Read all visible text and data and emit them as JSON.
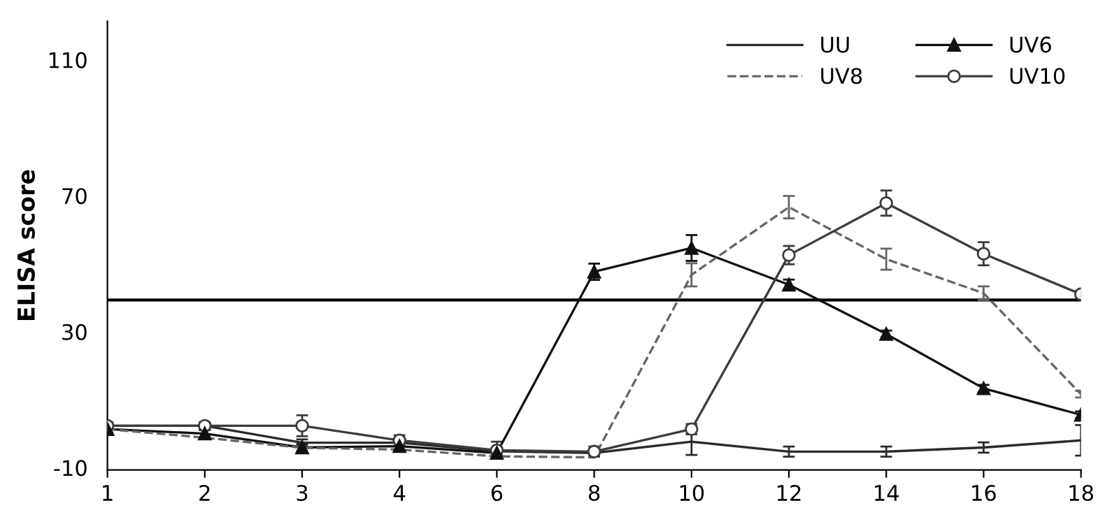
{
  "chart_data": {
    "type": "line",
    "ylabel": "ELISA score",
    "categories": [
      "1",
      "2",
      "3",
      "4",
      "6",
      "8",
      "10",
      "12",
      "14",
      "16",
      "18"
    ],
    "ylim": [
      -10,
      122
    ],
    "yticks": [
      -10,
      30,
      70,
      110
    ],
    "grid": false,
    "legend": "top right",
    "ref_lines": [
      {
        "axis": "y",
        "value": 40,
        "color": "#000000",
        "line_style": "solid"
      }
    ],
    "series": [
      {
        "name": "UU",
        "color": "#2b2b2b",
        "marker": "none",
        "line_style": "solid",
        "values": [
          3,
          3,
          -2,
          -2,
          -4.5,
          -5,
          -1.7,
          -4.6,
          -4.6,
          -3.4,
          -1.3
        ],
        "errors": [
          1,
          1,
          1,
          1,
          1,
          1,
          3.9,
          1.5,
          1.5,
          1.5,
          4.5
        ]
      },
      {
        "name": "UV6",
        "color": "#111111",
        "marker": "triangle",
        "line_style": "solid",
        "values": [
          2,
          0.7,
          -3.4,
          -3,
          -5,
          48.3,
          55.3,
          44.5,
          30,
          14,
          6.2
        ],
        "errors": [
          1,
          1,
          1,
          1,
          1,
          2.4,
          3.8,
          1.5,
          1,
          1,
          1
        ]
      },
      {
        "name": "UV8",
        "color": "#666666",
        "marker": "none",
        "line_style": "dashed",
        "values": [
          2,
          -0.5,
          -3.5,
          -4,
          -6,
          -6.3,
          47.4,
          67.3,
          52,
          42,
          12.3
        ],
        "errors": [
          null,
          null,
          null,
          null,
          null,
          null,
          3.4,
          3.3,
          3.1,
          2,
          1
        ]
      },
      {
        "name": "UV10",
        "color": "#3c3c3c",
        "marker": "circle",
        "line_style": "solid",
        "values": [
          3,
          3,
          3,
          -1.3,
          -4.2,
          -4.6,
          2,
          53.2,
          68.5,
          53.6,
          41.7
        ],
        "errors": [
          1,
          1,
          3.1,
          1.5,
          2.5,
          1.5,
          1.5,
          2.7,
          3.7,
          3.4,
          1
        ]
      }
    ]
  }
}
